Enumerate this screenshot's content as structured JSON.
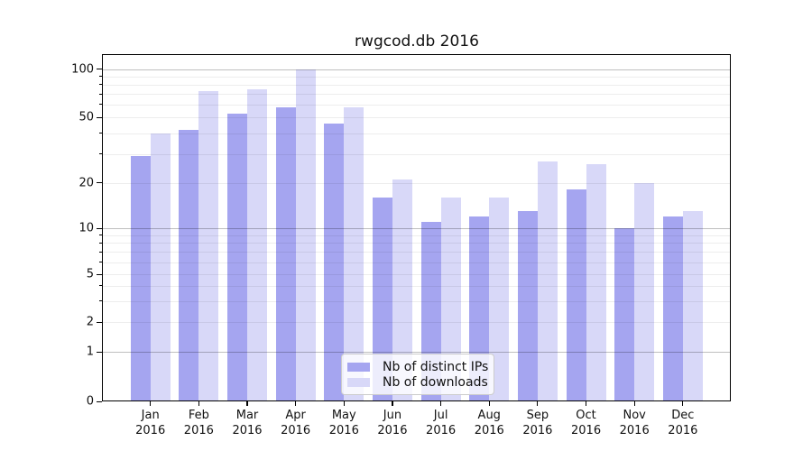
{
  "chart_data": {
    "type": "bar",
    "title": "rwgcod.db 2016",
    "categories": [
      "Jan",
      "Feb",
      "Mar",
      "Apr",
      "May",
      "Jun",
      "Jul",
      "Aug",
      "Sep",
      "Oct",
      "Nov",
      "Dec"
    ],
    "category_year": "2016",
    "series": [
      {
        "name": "Nb of distinct IPs",
        "color": "#a5a5f0",
        "values": [
          29,
          42,
          53,
          58,
          46,
          16,
          11,
          12,
          13,
          18,
          10,
          12
        ]
      },
      {
        "name": "Nb of downloads",
        "color": "#d8d8f8",
        "values": [
          40,
          73,
          75,
          100,
          58,
          21,
          16,
          16,
          27,
          26,
          20,
          13
        ]
      }
    ],
    "xlabel": "",
    "ylabel": "",
    "ylim": [
      0,
      120
    ],
    "y_axis": {
      "scale": "symlog",
      "ticks": [
        0,
        1,
        2,
        5,
        10,
        20,
        50,
        100
      ],
      "minor_ticks": [
        3,
        4,
        6,
        7,
        8,
        9,
        30,
        40,
        60,
        70,
        80,
        90
      ],
      "major_gridlines": [
        1,
        10,
        100
      ]
    },
    "grid": true,
    "legend_position": "bottom-center"
  }
}
